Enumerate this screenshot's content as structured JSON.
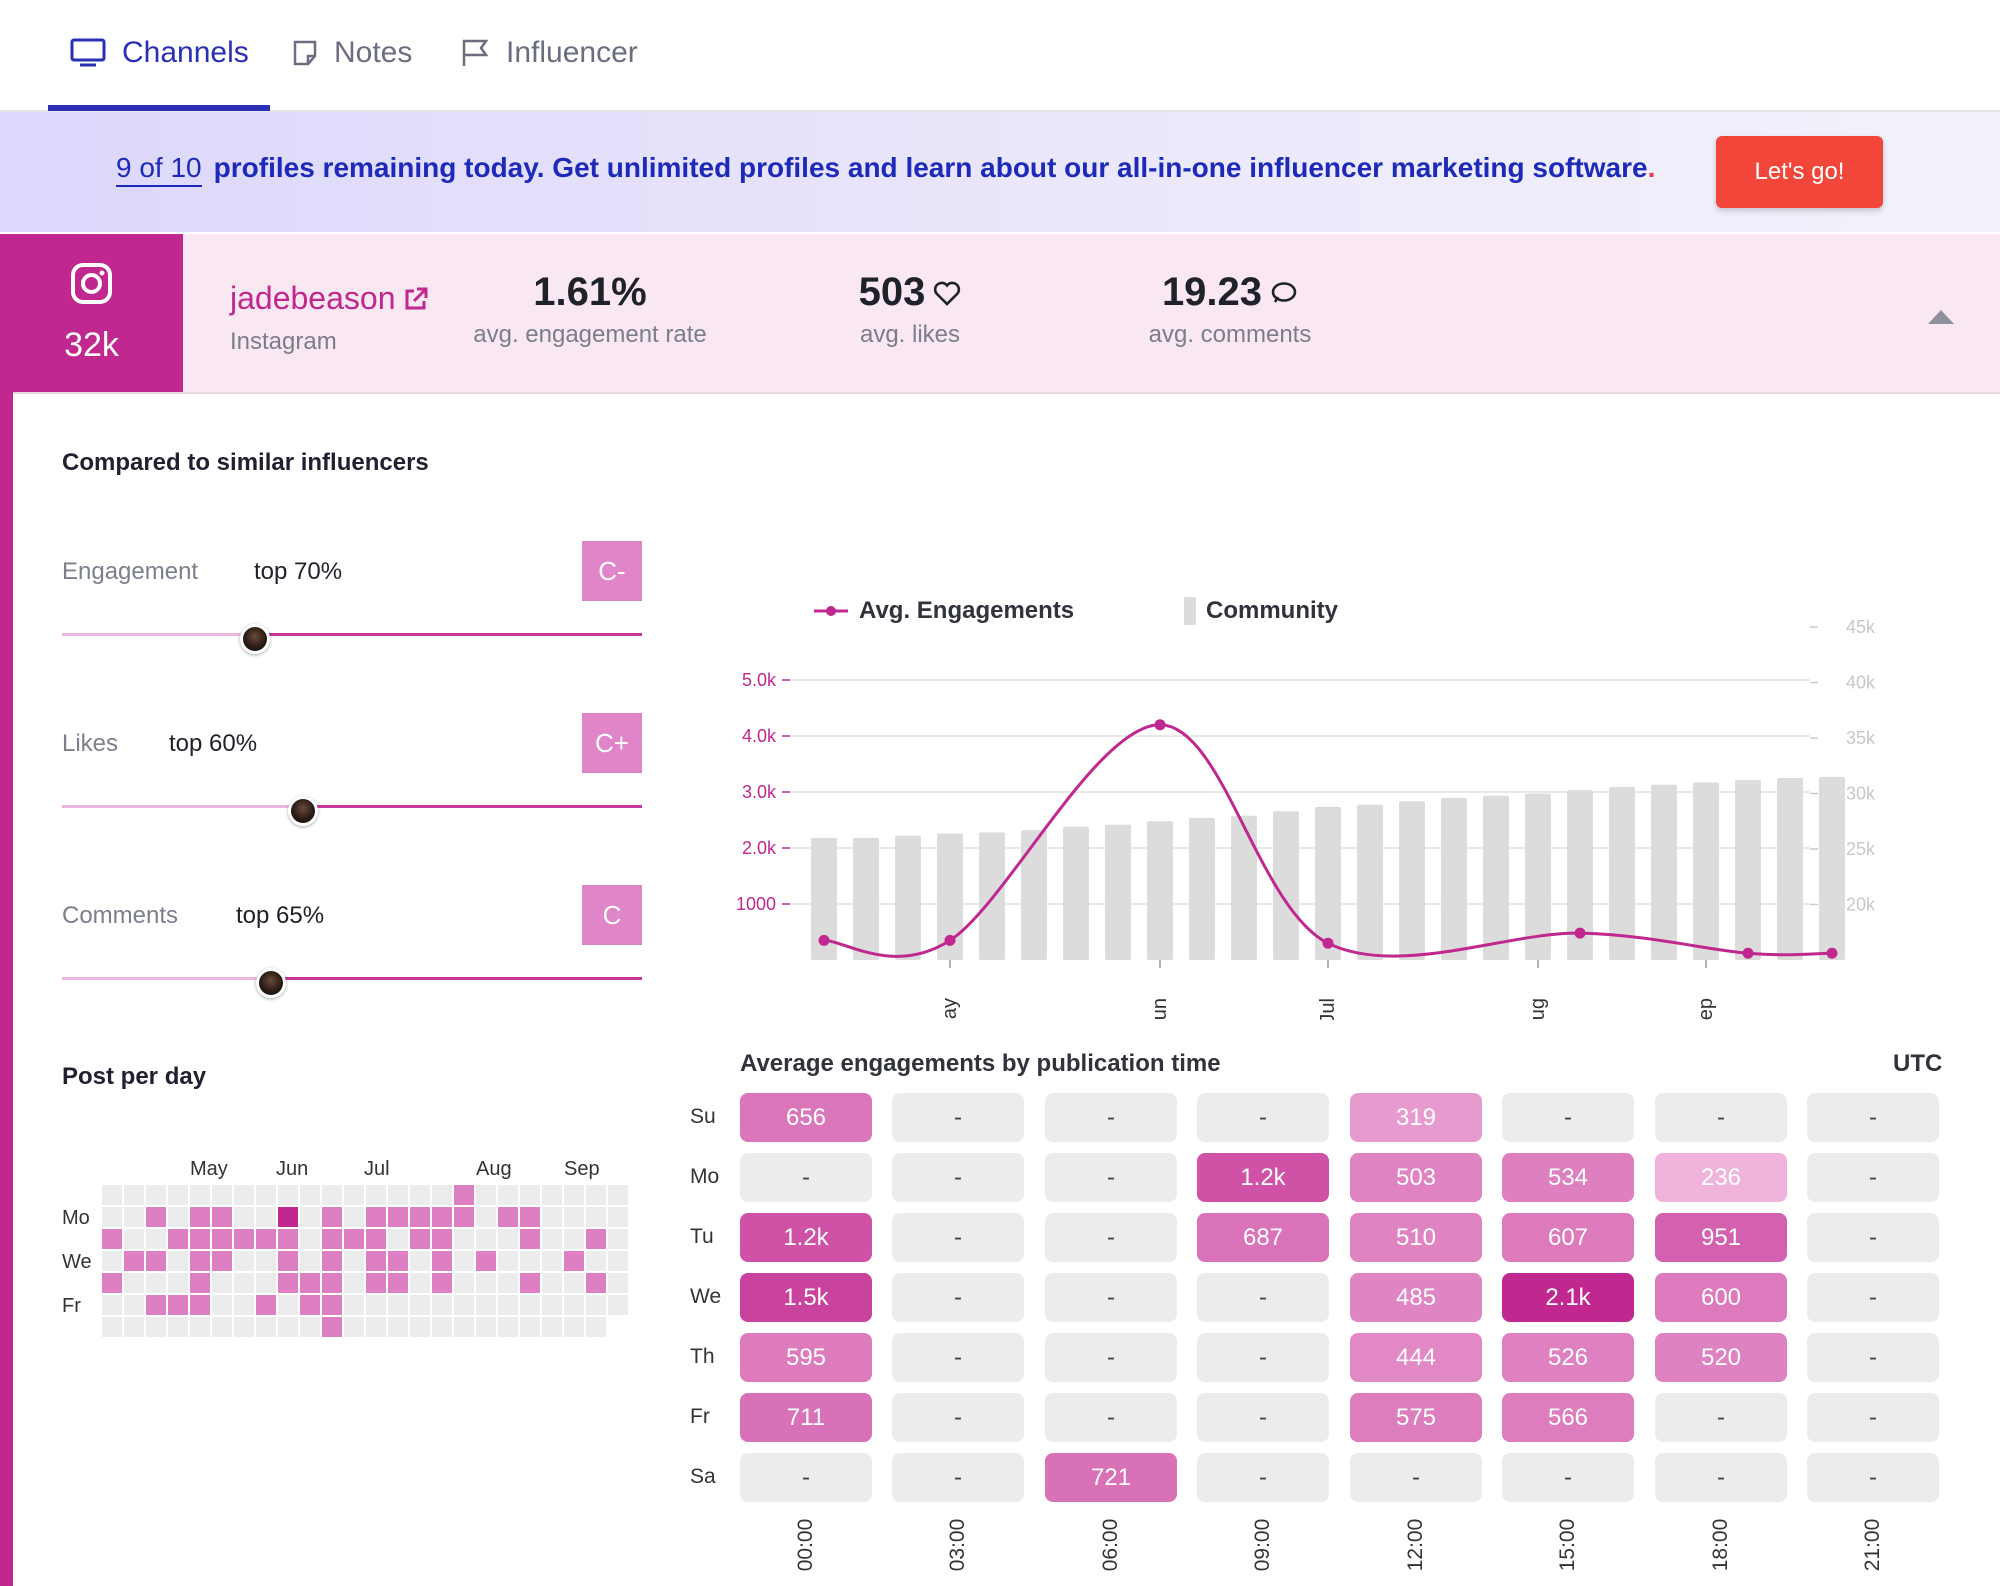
{
  "tabs": [
    {
      "label": "Channels",
      "icon": "monitor-icon",
      "active": true
    },
    {
      "label": "Notes",
      "icon": "note-icon",
      "active": false
    },
    {
      "label": "Influencer",
      "icon": "flag-icon",
      "active": false
    }
  ],
  "banner": {
    "count": "9 of 10",
    "text": "profiles remaining today. Get unlimited profiles and learn about our all-in-one influencer marketing software",
    "dot": ".",
    "cta": "Let's go!"
  },
  "profile": {
    "followers": "32k",
    "handle": "jadebeason",
    "platform": "Instagram",
    "engagement_rate": "1.61%",
    "engagement_rate_label": "avg. engagement rate",
    "avg_likes": "503",
    "avg_likes_label": "avg. likes",
    "avg_comments": "19.23",
    "avg_comments_label": "avg. comments"
  },
  "comparison": {
    "title": "Compared to similar influencers",
    "metrics": [
      {
        "label": "Engagement",
        "value": "top 70%",
        "grade": "C-",
        "position": 0.333
      },
      {
        "label": "Likes",
        "value": "top 60%",
        "grade": "C+",
        "position": 0.416
      },
      {
        "label": "Comments",
        "value": "top 65%",
        "grade": "C",
        "position": 0.36
      }
    ]
  },
  "post_per_day": {
    "title": "Post per day",
    "months": [
      "May",
      "Jun",
      "Jul",
      "Aug",
      "Sep"
    ],
    "days": [
      "Mo",
      "We",
      "Fr"
    ]
  },
  "colors": {
    "brand": "#c0288f",
    "accent_blue": "#2a2fb5",
    "cta": "#f2463b",
    "bar": "#dcdcdc",
    "empty_cell": "#ececec"
  },
  "chart_data": {
    "type": "line",
    "legend": [
      "Avg. Engagements",
      "Community"
    ],
    "x_labels": [
      "May",
      "Jun",
      "Jul",
      "Aug",
      "Sep"
    ],
    "y_left_ticks": [
      "1000",
      "2.0k",
      "3.0k",
      "4.0k",
      "5.0k"
    ],
    "y_right_ticks": [
      "20k",
      "25k",
      "30k",
      "35k",
      "40k",
      "45k"
    ],
    "y_left_range": [
      0,
      5000
    ],
    "y_right_range": [
      15000,
      45000
    ],
    "grid": true,
    "series": [
      {
        "name": "Avg. Engagements",
        "kind": "line",
        "axis": "left",
        "points": [
          [
            0,
            350
          ],
          [
            3,
            350
          ],
          [
            8,
            4200
          ],
          [
            12,
            300
          ],
          [
            18,
            480
          ],
          [
            22,
            120
          ],
          [
            24,
            120
          ]
        ]
      },
      {
        "name": "Community",
        "kind": "bar",
        "axis": "right",
        "values": [
          26000,
          26000,
          26200,
          26400,
          26500,
          26700,
          27000,
          27200,
          27500,
          27800,
          28000,
          28400,
          28800,
          29000,
          29300,
          29600,
          29800,
          30000,
          30300,
          30600,
          30800,
          31000,
          31200,
          31400,
          31500
        ]
      }
    ]
  },
  "heatmap": {
    "title": "Average engagements by publication time",
    "timezone": "UTC",
    "rows": [
      "Su",
      "Mo",
      "Tu",
      "We",
      "Th",
      "Fr",
      "Sa"
    ],
    "cols": [
      "00:00",
      "03:00",
      "06:00",
      "09:00",
      "12:00",
      "15:00",
      "18:00",
      "21:00"
    ],
    "values": [
      [
        "656",
        "-",
        "-",
        "-",
        "319",
        "-",
        "-",
        "-"
      ],
      [
        "-",
        "-",
        "-",
        "1.2k",
        "503",
        "534",
        "236",
        "-"
      ],
      [
        "1.2k",
        "-",
        "-",
        "687",
        "510",
        "607",
        "951",
        "-"
      ],
      [
        "1.5k",
        "-",
        "-",
        "-",
        "485",
        "2.1k",
        "600",
        "-"
      ],
      [
        "595",
        "-",
        "-",
        "-",
        "444",
        "526",
        "520",
        "-"
      ],
      [
        "711",
        "-",
        "-",
        "-",
        "575",
        "566",
        "-",
        "-"
      ],
      [
        "-",
        "-",
        "721",
        "-",
        "-",
        "-",
        "-",
        "-"
      ]
    ]
  }
}
